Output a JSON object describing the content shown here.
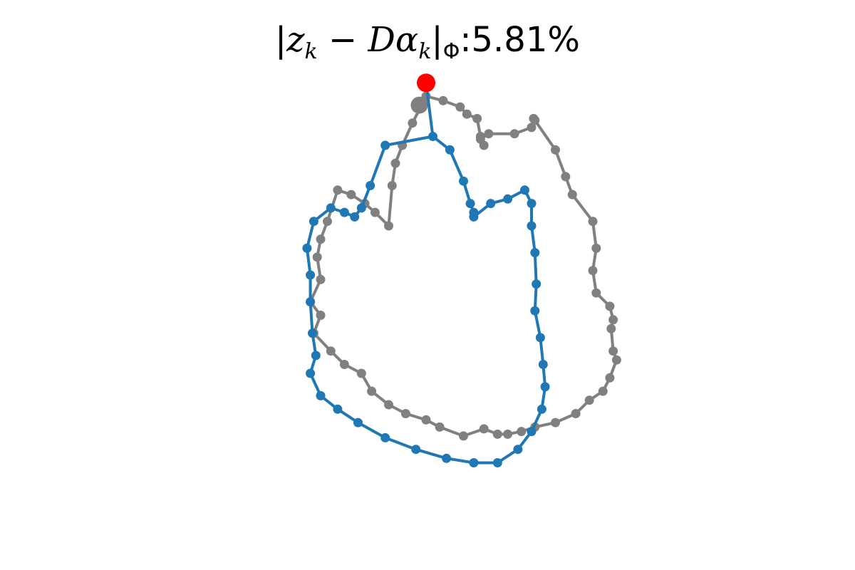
{
  "title": {
    "z": "z",
    "k": "k",
    "minus": " − ",
    "D": "D",
    "alpha": "α",
    "phi": "Φ",
    "colon": ":",
    "value": "5.81%"
  },
  "chart_data": {
    "type": "scatter",
    "title": "|z_k − Dα_k|_Φ : 5.81%",
    "grid": false,
    "axes_visible": false,
    "colors": {
      "target": "#808080",
      "reconstruction": "#1f77b4",
      "start": "#ff0000"
    },
    "series": [
      {
        "role": "target",
        "color": "#808080",
        "x": [
          0,
          0.25,
          0.5,
          0.6,
          0.75,
          0.8,
          0.85,
          0.8,
          0.92,
          1.3,
          1.55,
          1.58,
          1.6,
          1.9,
          2.05,
          2.15,
          2.45,
          2.5,
          2.45,
          2.5,
          2.7,
          2.75,
          2.72,
          2.75,
          2.8,
          2.7,
          2.6,
          2.4,
          2.2,
          1.9,
          1.6,
          1.4,
          1.2,
          1.05,
          0.85,
          0.55,
          0.2,
          0.0,
          -0.3,
          -0.55,
          -0.8,
          -0.95,
          -1.2,
          -1.4,
          -1.65,
          -1.55,
          -1.7,
          -1.55,
          -1.6,
          -1.55,
          -1.45,
          -1.3,
          -1.1,
          -0.9,
          -0.75,
          -0.55,
          -0.5,
          -0.45,
          -0.35,
          -0.2
        ],
        "y": [
          0,
          -0.05,
          -0.12,
          -0.2,
          -0.25,
          -0.45,
          -0.55,
          -0.48,
          -0.42,
          -0.42,
          -0.35,
          -0.25,
          -0.27,
          -0.6,
          -0.9,
          -1.1,
          -1.4,
          -1.7,
          -1.95,
          -2.2,
          -2.35,
          -2.5,
          -2.6,
          -2.85,
          -2.95,
          -3.15,
          -3.3,
          -3.4,
          -3.55,
          -3.65,
          -3.7,
          -3.75,
          -3.78,
          -3.78,
          -3.72,
          -3.8,
          -3.7,
          -3.62,
          -3.55,
          -3.45,
          -3.3,
          -3.1,
          -3.0,
          -2.85,
          -2.65,
          -2.45,
          -2.3,
          -2.05,
          -1.8,
          -1.6,
          -1.4,
          -1.05,
          -1.1,
          -1.2,
          -1.3,
          -1.45,
          -1.0,
          -0.75,
          -0.55,
          -0.3
        ],
        "start": {
          "x": -0.1,
          "y": -0.1
        }
      },
      {
        "role": "reconstruction",
        "color": "#1f77b4",
        "x": [
          0.1,
          0.35,
          0.55,
          0.65,
          0.7,
          0.7,
          0.95,
          1.2,
          1.45,
          1.55,
          1.55,
          1.6,
          1.62,
          1.6,
          1.68,
          1.72,
          1.75,
          1.7,
          1.55,
          1.35,
          1.05,
          0.7,
          0.3,
          -0.15,
          -0.6,
          -1.0,
          -1.3,
          -1.55,
          -1.7,
          -1.62,
          -1.67,
          -1.7,
          -1.7,
          -1.75,
          -1.65,
          -1.4,
          -1.2,
          -1.05,
          -0.95,
          -0.82,
          -0.6
        ],
        "y": [
          -0.45,
          -0.6,
          -0.95,
          -1.2,
          -1.3,
          -1.35,
          -1.2,
          -1.15,
          -1.05,
          -1.2,
          -1.45,
          -1.75,
          -2.1,
          -2.4,
          -2.7,
          -3.0,
          -3.25,
          -3.5,
          -3.75,
          -3.95,
          -4.1,
          -4.1,
          -4.05,
          -3.95,
          -3.82,
          -3.65,
          -3.5,
          -3.35,
          -3.1,
          -2.9,
          -2.65,
          -2.3,
          -2.0,
          -1.7,
          -1.4,
          -1.25,
          -1.3,
          -1.35,
          -1.25,
          -1.0,
          -0.55
        ],
        "start": {
          "x": 0.0,
          "y": 0.15
        }
      }
    ]
  }
}
